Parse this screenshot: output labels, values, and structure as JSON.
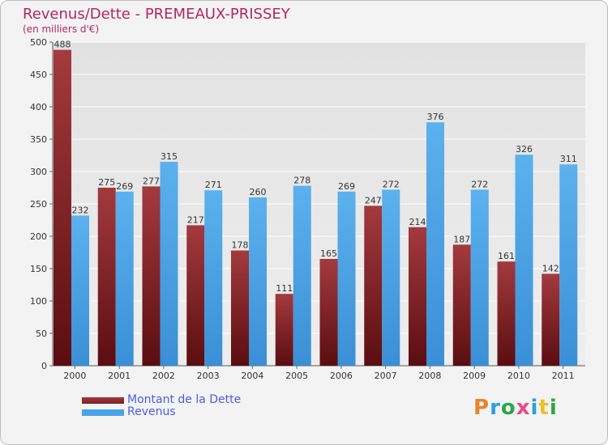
{
  "title": "Revenus/Dette - PREMEAUX-PRISSEY",
  "subtitle": "(en milliers d'€)",
  "logo_text": "Proxiti",
  "logo_colors": [
    "#e8832a",
    "#2a9ee0",
    "#2aa84a",
    "#e84a8a",
    "#2a9ee0",
    "#e8c12a",
    "#2aa84a"
  ],
  "colors": {
    "dette": "#7a1e22",
    "revenus": "#4aa3e8",
    "axis_text": "#333333",
    "grid": "#ffffff"
  },
  "chart_data": {
    "type": "bar",
    "categories": [
      "2000",
      "2001",
      "2002",
      "2003",
      "2004",
      "2005",
      "2006",
      "2007",
      "2008",
      "2009",
      "2010",
      "2011"
    ],
    "series": [
      {
        "name": "Montant de la Dette",
        "values": [
          488,
          275,
          277,
          217,
          178,
          111,
          165,
          247,
          214,
          187,
          161,
          142
        ]
      },
      {
        "name": "Revenus",
        "values": [
          232,
          269,
          315,
          271,
          260,
          278,
          269,
          272,
          376,
          272,
          326,
          311
        ]
      }
    ],
    "ylim": [
      0,
      500
    ],
    "yticks": [
      0,
      50,
      100,
      150,
      200,
      250,
      300,
      350,
      400,
      450,
      500
    ],
    "grid": true,
    "legend_position": "bottom-left"
  }
}
